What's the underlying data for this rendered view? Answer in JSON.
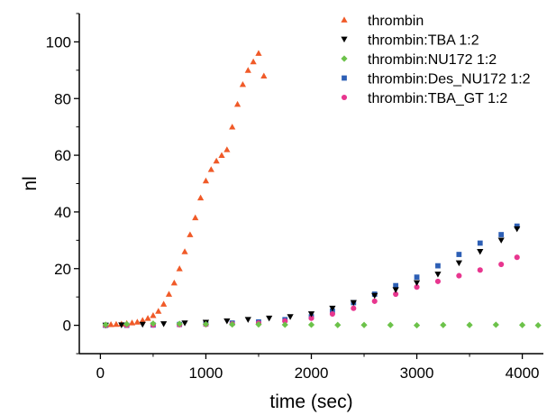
{
  "chart_data": {
    "type": "scatter",
    "title": "",
    "xlabel": "time (sec)",
    "ylabel": "nl",
    "xlim": [
      -200,
      4200
    ],
    "ylim": [
      -10,
      110
    ],
    "xticks": [
      0,
      1000,
      2000,
      3000,
      4000
    ],
    "yticks": [
      0,
      20,
      40,
      60,
      80,
      100
    ],
    "xtick_labels": [
      "0",
      "1000",
      "2000",
      "3000",
      "4000"
    ],
    "ytick_labels": [
      "0",
      "20",
      "40",
      "60",
      "80",
      "100"
    ],
    "grid": false,
    "legend_position": "top-right",
    "series": [
      {
        "name": "thrombin",
        "marker": "triangle-up",
        "color": "#f05a28",
        "x": [
          50,
          100,
          150,
          200,
          250,
          300,
          350,
          400,
          450,
          500,
          550,
          600,
          650,
          700,
          750,
          800,
          850,
          900,
          950,
          1000,
          1050,
          1100,
          1150,
          1200,
          1250,
          1300,
          1350,
          1400,
          1450,
          1500,
          1550
        ],
        "y": [
          0.2,
          0.3,
          0.4,
          0.5,
          0.7,
          0.9,
          1.2,
          1.8,
          2.5,
          3.5,
          5,
          7.5,
          11,
          15,
          20,
          26,
          32,
          38,
          45,
          51,
          55,
          58,
          60,
          62,
          70,
          78,
          85,
          90,
          93,
          96,
          88
        ]
      },
      {
        "name": "thrombin:TBA 1:2",
        "marker": "triangle-down",
        "color": "#000000",
        "x": [
          50,
          200,
          400,
          600,
          800,
          1000,
          1200,
          1400,
          1600,
          1800,
          2000,
          2200,
          2400,
          2600,
          2800,
          3000,
          3200,
          3400,
          3600,
          3800,
          3950
        ],
        "y": [
          0,
          0.1,
          0.3,
          0.5,
          0.8,
          1,
          1.5,
          2,
          2.5,
          3,
          4,
          6,
          8,
          10.5,
          12.5,
          15,
          18,
          22,
          26,
          30,
          34
        ]
      },
      {
        "name": "thrombin:NU172 1:2",
        "marker": "diamond",
        "color": "#6cc24a",
        "x": [
          50,
          250,
          500,
          750,
          1000,
          1250,
          1500,
          1750,
          2000,
          2250,
          2500,
          2750,
          3000,
          3250,
          3500,
          3750,
          4000,
          4150
        ],
        "y": [
          0.2,
          0.4,
          0.6,
          0.5,
          0.4,
          0.3,
          0.3,
          0.2,
          0.2,
          0.1,
          0.1,
          0.1,
          0,
          0.1,
          0.1,
          0.2,
          0.1,
          0
        ]
      },
      {
        "name": "thrombin:Des_NU172 1:2",
        "marker": "square",
        "color": "#2d5fb5",
        "x": [
          50,
          250,
          500,
          750,
          1000,
          1250,
          1500,
          1750,
          2000,
          2200,
          2400,
          2600,
          2800,
          3000,
          3200,
          3400,
          3600,
          3800,
          3950
        ],
        "y": [
          0,
          0,
          0.1,
          0.3,
          0.5,
          0.8,
          1.2,
          2,
          3,
          5,
          8,
          11,
          14,
          17,
          21,
          25,
          29,
          32,
          35
        ]
      },
      {
        "name": "thrombin:TBA_GT 1:2",
        "marker": "circle",
        "color": "#e8368f",
        "x": [
          50,
          250,
          500,
          750,
          1000,
          1250,
          1500,
          1750,
          2000,
          2200,
          2400,
          2600,
          2800,
          3000,
          3200,
          3400,
          3600,
          3800,
          3950
        ],
        "y": [
          0,
          0,
          0.1,
          0.2,
          0.3,
          0.5,
          0.8,
          1.5,
          2.5,
          4,
          6,
          8.5,
          11,
          13.5,
          15.5,
          17.5,
          19.5,
          21.5,
          24
        ]
      }
    ]
  }
}
